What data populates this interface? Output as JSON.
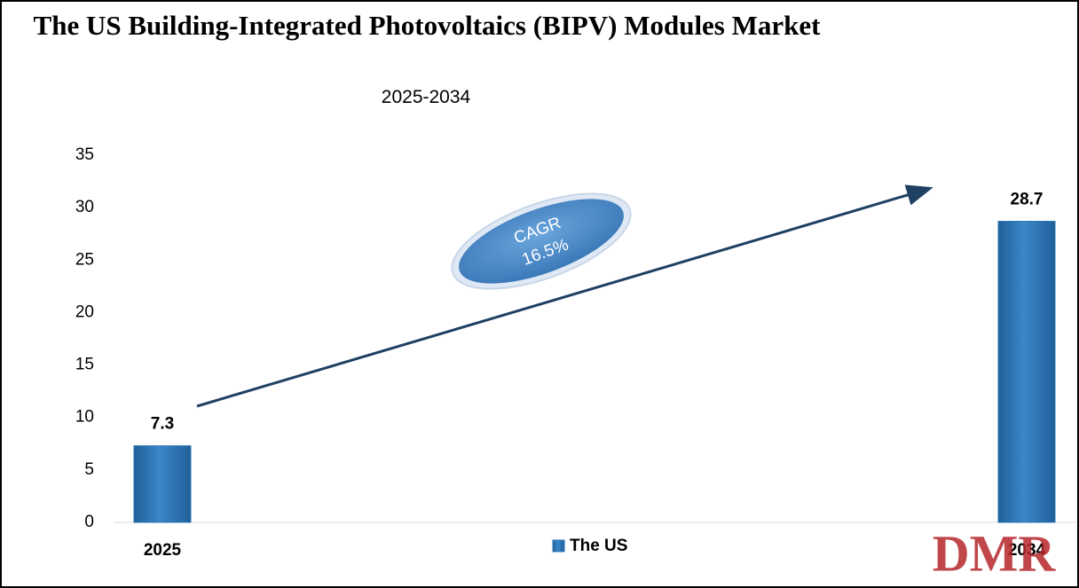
{
  "chart_data": {
    "type": "bar",
    "title": "The US Building-Integrated Photovoltaics (BIPV) Modules Market",
    "subtitle": "2025-2034",
    "categories": [
      "2025",
      "2034"
    ],
    "series": [
      {
        "name": "The US",
        "color": "#2e75b6",
        "values": [
          7.3,
          28.7
        ]
      }
    ],
    "ylim": [
      0,
      35
    ],
    "yticks": [
      0,
      5,
      10,
      15,
      20,
      25,
      30,
      35
    ],
    "grid": false,
    "annotation": [
      "CAGR",
      "16.5%"
    ],
    "logo": "DMR"
  }
}
